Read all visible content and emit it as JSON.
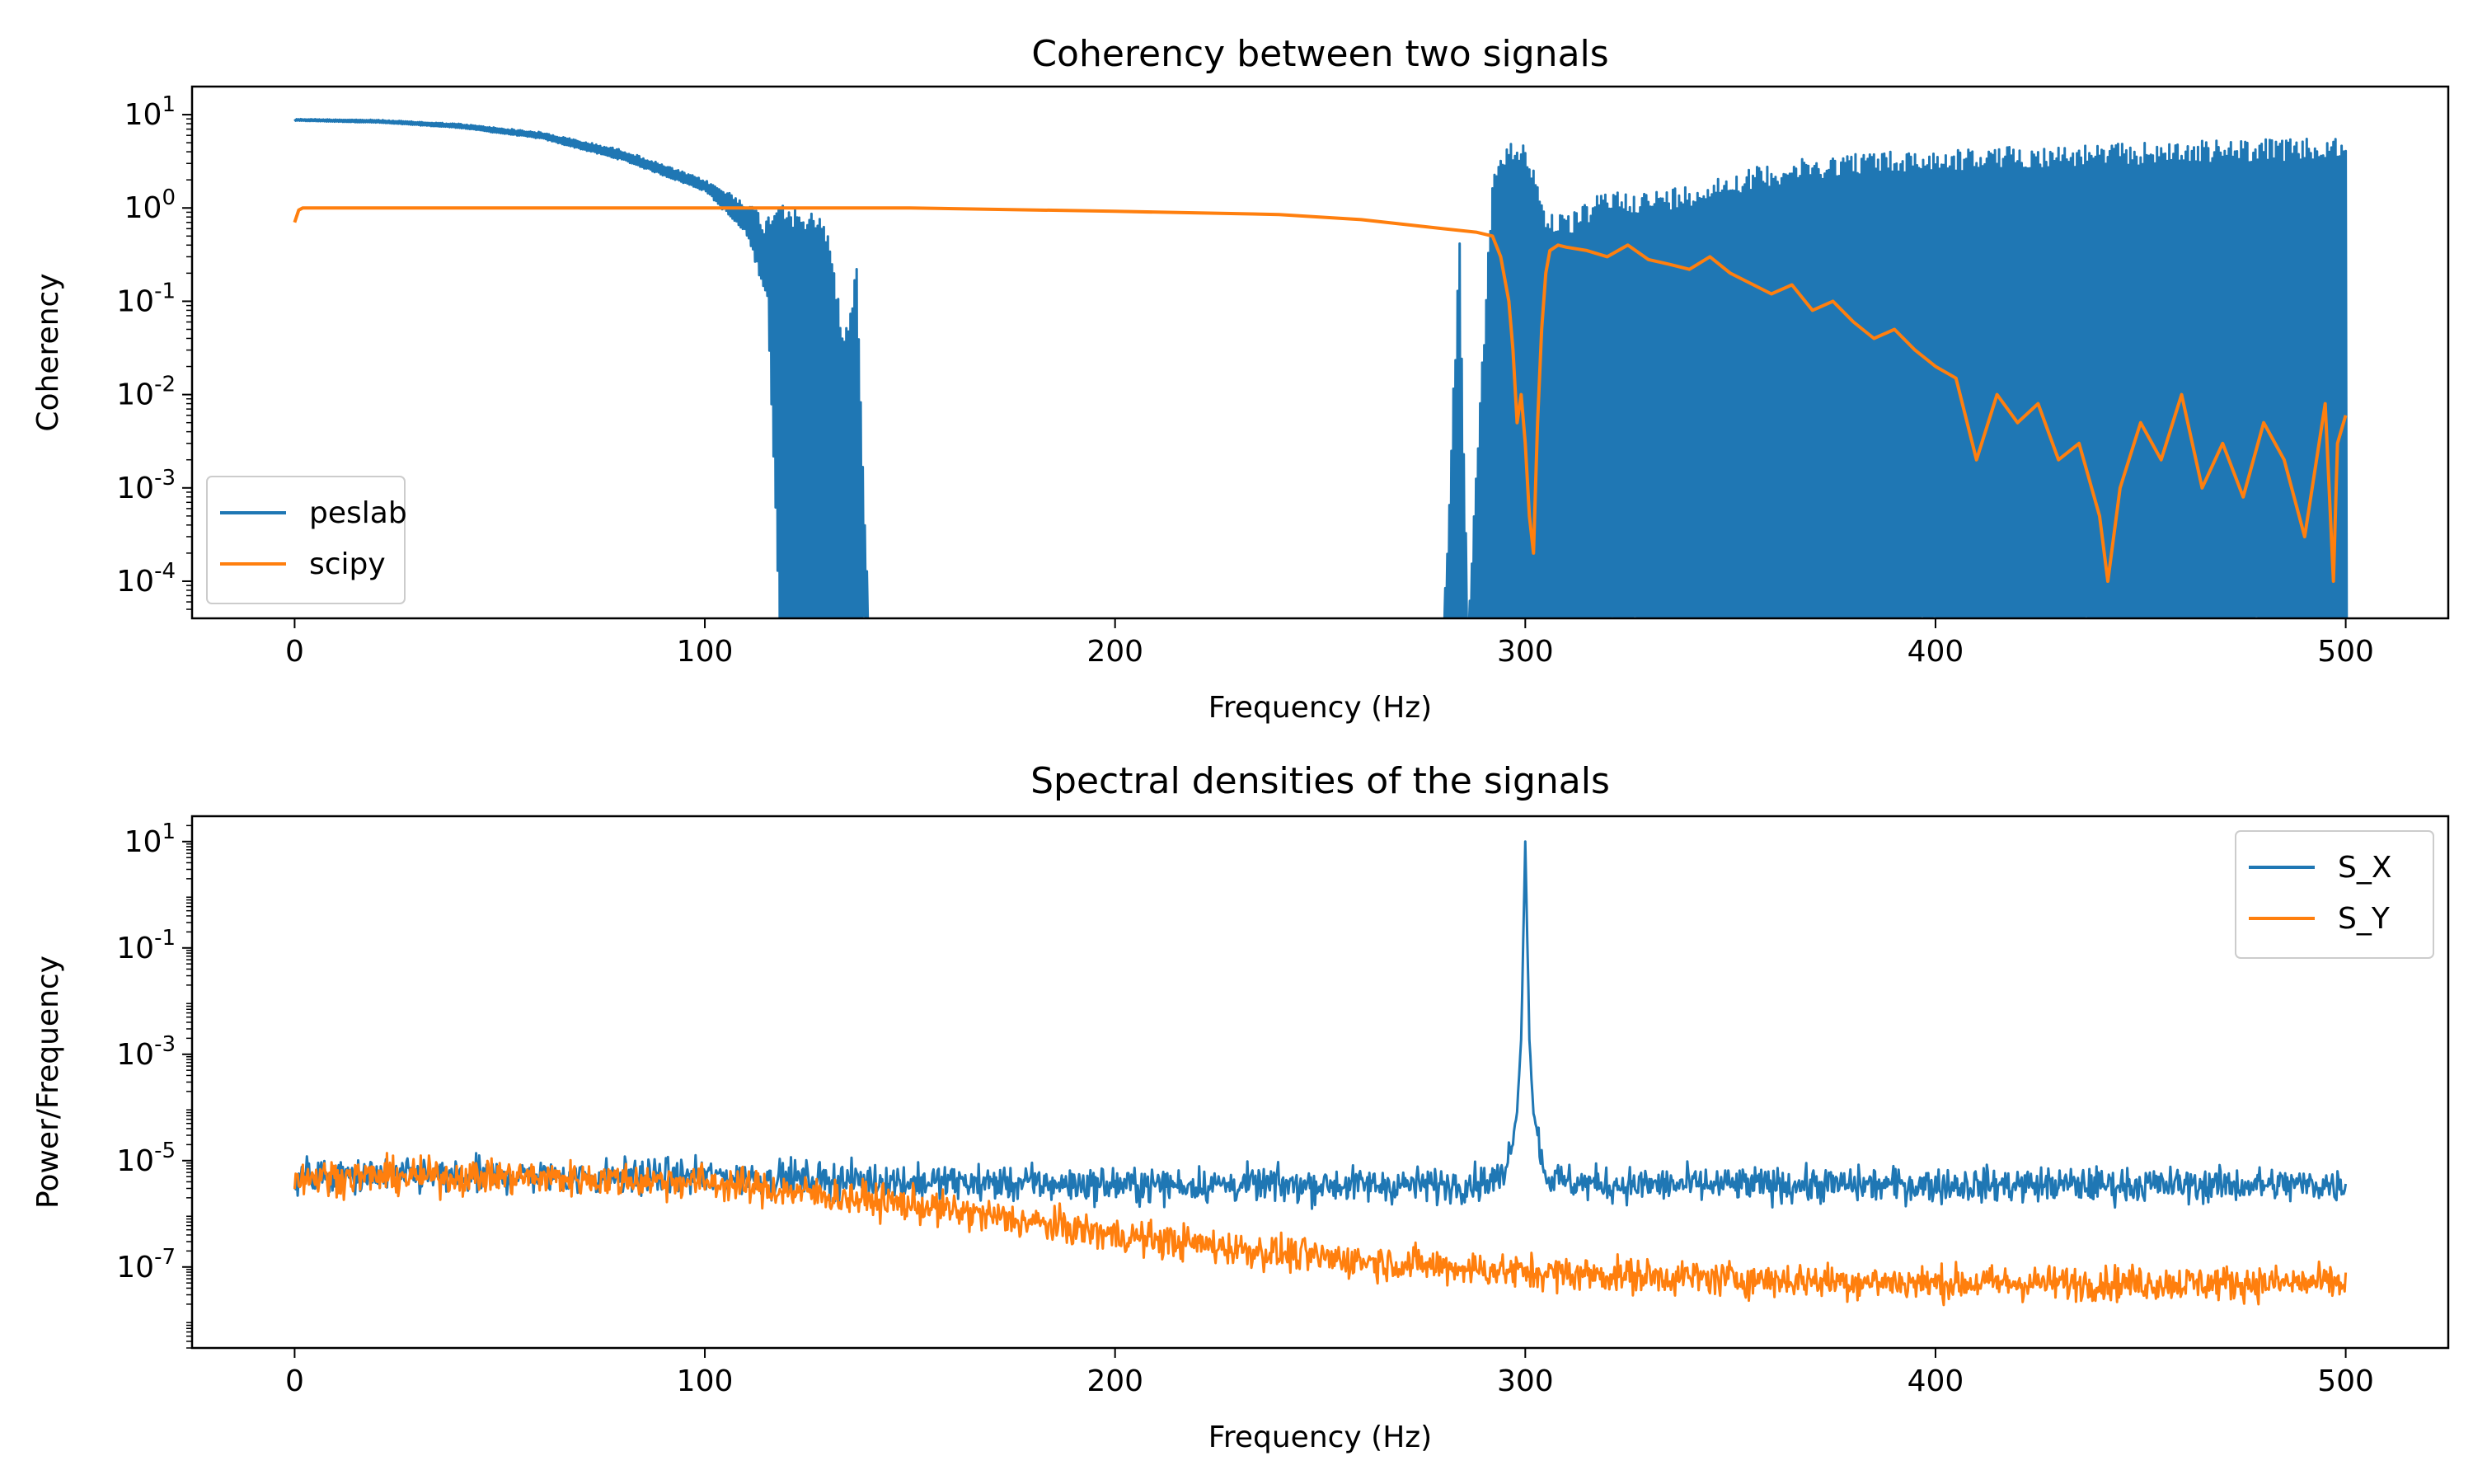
{
  "chart_data": [
    {
      "type": "line",
      "title": "Coherency between two signals",
      "xlabel": "Frequency (Hz)",
      "ylabel": "Coherency",
      "yscale": "log",
      "xlim": [
        -25,
        525
      ],
      "ylim": [
        4e-05,
        20
      ],
      "xticks": [
        0,
        100,
        200,
        300,
        400,
        500
      ],
      "xtick_labels": [
        "0",
        "100",
        "200",
        "300",
        "400",
        "500"
      ],
      "yticks": [
        0.0001,
        0.001,
        0.01,
        0.1,
        1,
        10
      ],
      "ytick_exponents": [
        "-4",
        "-3",
        "-2",
        "-1",
        "0",
        "1"
      ],
      "legend_placement": "lower-left",
      "series": [
        {
          "name": "peslab",
          "color": "#1f77b4",
          "style": "dense",
          "x": [
            0,
            20,
            40,
            60,
            80,
            100,
            110,
            115,
            118,
            122,
            126,
            130,
            134,
            137,
            140,
            200,
            280,
            284,
            286,
            292,
            296,
            300,
            305,
            310,
            320,
            330,
            340,
            350,
            360,
            380,
            400,
            420,
            440,
            460,
            480,
            500
          ],
          "y_max": [
            9,
            8.8,
            8,
            6.5,
            4.2,
            2.0,
            1.2,
            0.8,
            1.5,
            1.0,
            0.9,
            0.7,
            0.04,
            0.26,
            3e-05,
            3e-05,
            3e-05,
            0.45,
            3e-05,
            2.5,
            5.0,
            5.5,
            1.0,
            0.8,
            1.6,
            1.5,
            1.8,
            2.4,
            3.0,
            4.0,
            4.2,
            4.6,
            4.8,
            5.2,
            5.5,
            5.5
          ],
          "y_min": [
            8.6,
            8.2,
            7.2,
            5.5,
            3.2,
            1.5,
            0.5,
            0.1,
            3e-05,
            3e-05,
            3e-05,
            3e-05,
            3e-05,
            3e-05,
            3e-05,
            3e-05,
            3e-05,
            3e-05,
            3e-05,
            3e-05,
            3e-05,
            3e-05,
            3e-05,
            3e-05,
            3e-05,
            3e-05,
            3e-05,
            3e-05,
            3e-05,
            3e-05,
            3e-05,
            3e-05,
            3e-05,
            3e-05,
            3e-05,
            3e-05
          ]
        },
        {
          "name": "scipy",
          "color": "#ff7f0e",
          "style": "line",
          "x": [
            0,
            1,
            2,
            20,
            100,
            150,
            200,
            240,
            260,
            280,
            288,
            292,
            294,
            296,
            297,
            298,
            299,
            300,
            301,
            302,
            303,
            304,
            305,
            306,
            308,
            310,
            315,
            320,
            325,
            330,
            335,
            340,
            345,
            350,
            360,
            365,
            370,
            375,
            380,
            385,
            390,
            395,
            400,
            405,
            410,
            415,
            420,
            425,
            430,
            435,
            440,
            442,
            445,
            450,
            455,
            460,
            465,
            470,
            475,
            480,
            485,
            490,
            495,
            497,
            498,
            500
          ],
          "y": [
            0.7,
            0.95,
            1.0,
            1.0,
            1.0,
            1.0,
            0.92,
            0.85,
            0.75,
            0.6,
            0.55,
            0.5,
            0.3,
            0.1,
            0.03,
            0.005,
            0.01,
            0.003,
            0.0005,
            0.0002,
            0.005,
            0.05,
            0.2,
            0.35,
            0.4,
            0.38,
            0.35,
            0.3,
            0.4,
            0.28,
            0.25,
            0.22,
            0.3,
            0.2,
            0.12,
            0.15,
            0.08,
            0.1,
            0.06,
            0.04,
            0.05,
            0.03,
            0.02,
            0.015,
            0.002,
            0.01,
            0.005,
            0.008,
            0.002,
            0.003,
            0.0005,
            0.0001,
            0.001,
            0.005,
            0.002,
            0.01,
            0.001,
            0.003,
            0.0008,
            0.005,
            0.002,
            0.0003,
            0.008,
            0.0001,
            0.003,
            0.006
          ]
        }
      ]
    },
    {
      "type": "line",
      "title": "Spectral densities of the signals",
      "xlabel": "Frequency (Hz)",
      "ylabel": "Power/Frequency",
      "yscale": "log",
      "xlim": [
        -25,
        525
      ],
      "ylim": [
        3e-09,
        30
      ],
      "xticks": [
        0,
        100,
        200,
        300,
        400,
        500
      ],
      "xtick_labels": [
        "0",
        "100",
        "200",
        "300",
        "400",
        "500"
      ],
      "yticks": [
        1e-07,
        1e-05,
        0.001,
        0.1,
        10
      ],
      "ytick_exponents": [
        "-7",
        "-5",
        "-3",
        "-1",
        "1"
      ],
      "legend_placement": "top-right",
      "series": [
        {
          "name": "S_X",
          "color": "#1f77b4",
          "style": "noisy",
          "x": [
            0,
            50,
            100,
            150,
            200,
            250,
            280,
            290,
            295,
            298,
            299,
            300,
            301,
            302,
            305,
            310,
            320,
            350,
            400,
            450,
            500
          ],
          "y": [
            5e-06,
            5e-06,
            5e-06,
            4e-06,
            3.5e-06,
            3.5e-06,
            3.5e-06,
            4e-06,
            5e-06,
            8e-05,
            0.002,
            10,
            0.002,
            8e-05,
            5e-06,
            4e-06,
            3.5e-06,
            3.5e-06,
            3.5e-06,
            3.5e-06,
            3.5e-06
          ]
        },
        {
          "name": "S_Y",
          "color": "#ff7f0e",
          "style": "noisy",
          "x": [
            0,
            50,
            100,
            150,
            200,
            250,
            300,
            350,
            400,
            450,
            500
          ],
          "y": [
            5e-06,
            5e-06,
            4e-06,
            1.5e-06,
            4e-07,
            1.5e-07,
            8e-08,
            6e-08,
            5e-08,
            5e-08,
            5e-08
          ]
        }
      ]
    }
  ]
}
